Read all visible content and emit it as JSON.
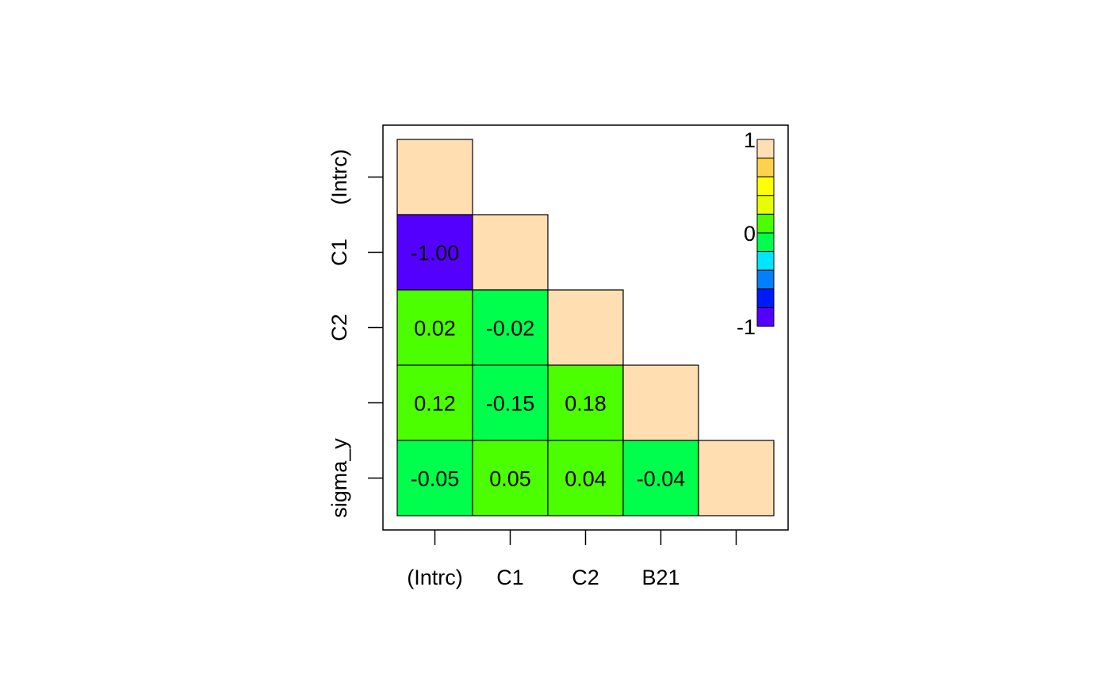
{
  "chart_data": {
    "type": "heatmap",
    "title": "",
    "xlabel": "",
    "ylabel": "",
    "x_tick_labels": [
      "(Intrc)",
      "C1",
      "C2",
      "B21",
      ""
    ],
    "y_tick_labels": [
      "(Intrc)",
      "C1",
      "C2",
      "",
      "sigma_y"
    ],
    "cells": [
      {
        "row": 0,
        "col": 0,
        "value": 1.0,
        "label": "",
        "color": "#FFDFB2"
      },
      {
        "row": 1,
        "col": 0,
        "value": -1.0,
        "label": "-1.00",
        "color": "#5400FF"
      },
      {
        "row": 1,
        "col": 1,
        "value": 1.0,
        "label": "",
        "color": "#FFDFB2"
      },
      {
        "row": 2,
        "col": 0,
        "value": 0.02,
        "label": "0.02",
        "color": "#4CFF00"
      },
      {
        "row": 2,
        "col": 1,
        "value": -0.02,
        "label": "-0.02",
        "color": "#00FF4D"
      },
      {
        "row": 2,
        "col": 2,
        "value": 1.0,
        "label": "",
        "color": "#FFDFB2"
      },
      {
        "row": 3,
        "col": 0,
        "value": 0.12,
        "label": "0.12",
        "color": "#4CFF00"
      },
      {
        "row": 3,
        "col": 1,
        "value": -0.15,
        "label": "-0.15",
        "color": "#00FF4D"
      },
      {
        "row": 3,
        "col": 2,
        "value": 0.18,
        "label": "0.18",
        "color": "#4CFF00"
      },
      {
        "row": 3,
        "col": 3,
        "value": 1.0,
        "label": "",
        "color": "#FFDFB2"
      },
      {
        "row": 4,
        "col": 0,
        "value": -0.05,
        "label": "-0.05",
        "color": "#00FF4D"
      },
      {
        "row": 4,
        "col": 1,
        "value": 0.05,
        "label": "0.05",
        "color": "#4CFF00"
      },
      {
        "row": 4,
        "col": 2,
        "value": 0.04,
        "label": "0.04",
        "color": "#4CFF00"
      },
      {
        "row": 4,
        "col": 3,
        "value": -0.04,
        "label": "-0.04",
        "color": "#00FF4D"
      },
      {
        "row": 4,
        "col": 4,
        "value": 1.0,
        "label": "",
        "color": "#FFDFB2"
      }
    ],
    "color_scale": {
      "range": [
        -1,
        1
      ],
      "colors_top_to_bottom": [
        "#FFDFB2",
        "#FFD24D",
        "#FFFF00",
        "#E5FF00",
        "#4CFF00",
        "#00FF4D",
        "#00E5FF",
        "#0080FF",
        "#0019FF",
        "#5400FF"
      ],
      "tick_labels": [
        "1",
        "0",
        "-1"
      ],
      "placement": "top-right"
    },
    "grid": false
  }
}
